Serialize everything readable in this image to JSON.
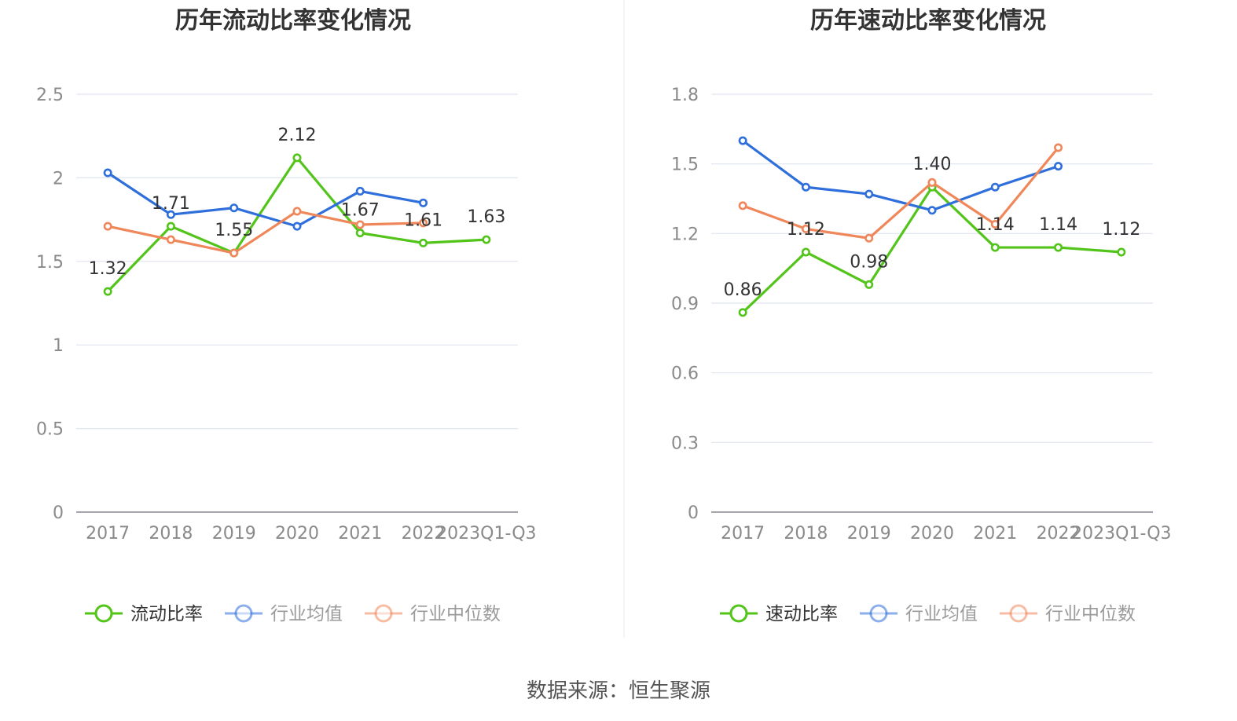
{
  "source": "数据来源：恒生聚源",
  "chart_data": [
    {
      "type": "line",
      "title": "历年流动比率变化情况",
      "categories": [
        "2017",
        "2018",
        "2019",
        "2020",
        "2021",
        "2022",
        "2023Q1-Q3"
      ],
      "ylim": [
        0,
        2.5
      ],
      "yticks": [
        "0",
        "0.5",
        "1",
        "1.5",
        "2",
        "2.5"
      ],
      "yticks_values": [
        0,
        0.5,
        1,
        1.5,
        2,
        2.5
      ],
      "grid": true,
      "legend_position": "bottom",
      "series": [
        {
          "name": "流动比率",
          "color": "#52c41a",
          "values": [
            1.32,
            1.71,
            1.55,
            2.12,
            1.67,
            1.61,
            1.63
          ],
          "labels": [
            "1.32",
            "1.71",
            "1.55",
            "2.12",
            "1.67",
            "1.61",
            "1.63"
          ],
          "legend_active": true
        },
        {
          "name": "行业均值",
          "color": "#2f6fdb",
          "values": [
            2.03,
            1.78,
            1.82,
            1.71,
            1.92,
            1.85,
            null
          ],
          "legend_active": false
        },
        {
          "name": "行业中位数",
          "color": "#f0875a",
          "values": [
            1.71,
            1.63,
            1.55,
            1.8,
            1.72,
            1.73,
            null
          ],
          "legend_active": false
        }
      ]
    },
    {
      "type": "line",
      "title": "历年速动比率变化情况",
      "categories": [
        "2017",
        "2018",
        "2019",
        "2020",
        "2021",
        "2022",
        "2023Q1-Q3"
      ],
      "ylim": [
        0,
        1.8
      ],
      "yticks": [
        "0",
        "0.3",
        "0.6",
        "0.9",
        "1.2",
        "1.5",
        "1.8"
      ],
      "yticks_values": [
        0,
        0.3,
        0.6,
        0.9,
        1.2,
        1.5,
        1.8
      ],
      "grid": true,
      "legend_position": "bottom",
      "series": [
        {
          "name": "速动比率",
          "color": "#52c41a",
          "values": [
            0.86,
            1.12,
            0.98,
            1.4,
            1.14,
            1.14,
            1.12
          ],
          "labels": [
            "0.86",
            "1.12",
            "0.98",
            "1.40",
            "1.14",
            "1.14",
            "1.12"
          ],
          "legend_active": true
        },
        {
          "name": "行业均值",
          "color": "#2f6fdb",
          "values": [
            1.6,
            1.4,
            1.37,
            1.3,
            1.4,
            1.49,
            null
          ],
          "legend_active": false
        },
        {
          "name": "行业中位数",
          "color": "#f0875a",
          "values": [
            1.32,
            1.22,
            1.18,
            1.42,
            1.24,
            1.57,
            null
          ],
          "legend_active": false
        }
      ]
    }
  ]
}
